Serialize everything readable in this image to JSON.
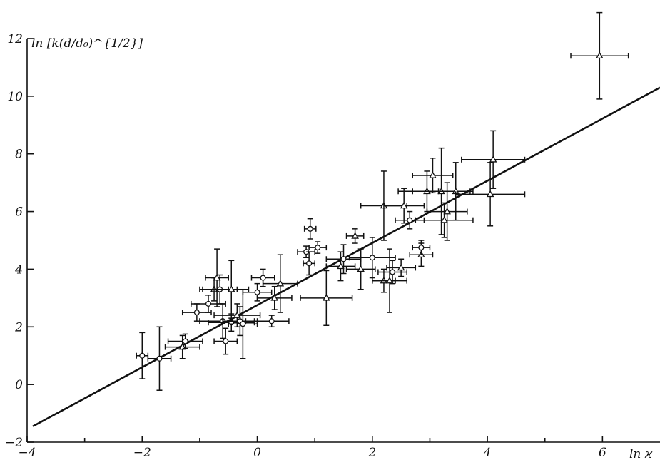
{
  "chart_data": {
    "type": "scatter",
    "xlabel": "ln ϰ",
    "ylabel": "ln [k(d/d₀)^{1/2}]",
    "xlim": [
      -4,
      7
    ],
    "ylim": [
      -2,
      12
    ],
    "x_ticks": [
      -4,
      -2,
      0,
      2,
      4,
      6
    ],
    "x_tick_labels": [
      "−4",
      "−2",
      "0",
      "2",
      "4",
      "6"
    ],
    "y_ticks": [
      -2,
      0,
      2,
      4,
      6,
      8,
      10,
      12
    ],
    "y_tick_labels": [
      "−2",
      "0",
      "2",
      "4",
      "6",
      "8",
      "10",
      "12"
    ],
    "grid": false,
    "fit_line": {
      "x": [
        -3.9,
        7.0
      ],
      "y": [
        -1.45,
        10.3
      ]
    },
    "points": [
      {
        "x": -2.0,
        "y": 1.0,
        "dx": 0.1,
        "dy": 0.8,
        "m": "o"
      },
      {
        "x": -1.7,
        "y": 0.9,
        "dx": 0.2,
        "dy": 1.1,
        "m": "o"
      },
      {
        "x": -1.3,
        "y": 1.3,
        "dx": 0.3,
        "dy": 0.4,
        "m": "t"
      },
      {
        "x": -1.25,
        "y": 1.5,
        "dx": 0.3,
        "dy": 0.25,
        "m": "o"
      },
      {
        "x": -1.05,
        "y": 2.5,
        "dx": 0.25,
        "dy": 0.3,
        "m": "o"
      },
      {
        "x": -0.85,
        "y": 2.8,
        "dx": 0.3,
        "dy": 0.3,
        "m": "o"
      },
      {
        "x": -0.75,
        "y": 3.3,
        "dx": 0.25,
        "dy": 0.4,
        "m": "t"
      },
      {
        "x": -0.7,
        "y": 3.7,
        "dx": 0.2,
        "dy": 1.0,
        "m": "t"
      },
      {
        "x": -0.65,
        "y": 3.3,
        "dx": 0.3,
        "dy": 0.5,
        "m": "o"
      },
      {
        "x": -0.6,
        "y": 2.2,
        "dx": 0.4,
        "dy": 0.6,
        "m": "o"
      },
      {
        "x": -0.55,
        "y": 1.5,
        "dx": 0.2,
        "dy": 0.45,
        "m": "o"
      },
      {
        "x": -0.45,
        "y": 2.15,
        "dx": 0.4,
        "dy": 0.3,
        "m": "o"
      },
      {
        "x": -0.45,
        "y": 3.3,
        "dx": 0.3,
        "dy": 1.0,
        "m": "t"
      },
      {
        "x": -0.35,
        "y": 2.4,
        "dx": 0.4,
        "dy": 0.4,
        "m": "t"
      },
      {
        "x": -0.3,
        "y": 2.2,
        "dx": 0.3,
        "dy": 0.5,
        "m": "o"
      },
      {
        "x": -0.25,
        "y": 2.1,
        "dx": 0.25,
        "dy": 1.2,
        "m": "o"
      },
      {
        "x": 0.0,
        "y": 3.2,
        "dx": 0.25,
        "dy": 0.3,
        "m": "o"
      },
      {
        "x": 0.1,
        "y": 3.7,
        "dx": 0.2,
        "dy": 0.3,
        "m": "o"
      },
      {
        "x": 0.25,
        "y": 2.2,
        "dx": 0.3,
        "dy": 0.2,
        "m": "o"
      },
      {
        "x": 0.3,
        "y": 3.0,
        "dx": 0.3,
        "dy": 0.4,
        "m": "t"
      },
      {
        "x": 0.4,
        "y": 3.5,
        "dx": 0.3,
        "dy": 1.0,
        "m": "t"
      },
      {
        "x": 0.85,
        "y": 4.6,
        "dx": 0.15,
        "dy": 0.2,
        "m": "o"
      },
      {
        "x": 0.9,
        "y": 4.2,
        "dx": 0.1,
        "dy": 0.4,
        "m": "o"
      },
      {
        "x": 0.92,
        "y": 5.4,
        "dx": 0.1,
        "dy": 0.35,
        "m": "o"
      },
      {
        "x": 1.05,
        "y": 4.75,
        "dx": 0.15,
        "dy": 0.2,
        "m": "o"
      },
      {
        "x": 1.2,
        "y": 3.0,
        "dx": 0.45,
        "dy": 0.95,
        "m": "t"
      },
      {
        "x": 1.45,
        "y": 4.1,
        "dx": 0.25,
        "dy": 0.5,
        "m": "t"
      },
      {
        "x": 1.5,
        "y": 4.35,
        "dx": 0.3,
        "dy": 0.5,
        "m": "o"
      },
      {
        "x": 1.7,
        "y": 5.15,
        "dx": 0.15,
        "dy": 0.25,
        "m": "t"
      },
      {
        "x": 1.8,
        "y": 4.0,
        "dx": 0.25,
        "dy": 0.7,
        "m": "t"
      },
      {
        "x": 2.0,
        "y": 4.4,
        "dx": 0.4,
        "dy": 0.7,
        "m": "o"
      },
      {
        "x": 2.2,
        "y": 3.6,
        "dx": 0.2,
        "dy": 0.4,
        "m": "t"
      },
      {
        "x": 2.2,
        "y": 6.2,
        "dx": 0.4,
        "dy": 1.2,
        "m": "t"
      },
      {
        "x": 2.3,
        "y": 3.6,
        "dx": 0.3,
        "dy": 1.1,
        "m": "t"
      },
      {
        "x": 2.35,
        "y": 3.9,
        "dx": 0.25,
        "dy": 0.4,
        "m": "o"
      },
      {
        "x": 2.5,
        "y": 4.05,
        "dx": 0.25,
        "dy": 0.3,
        "m": "t"
      },
      {
        "x": 2.55,
        "y": 6.2,
        "dx": 0.35,
        "dy": 0.6,
        "m": "t"
      },
      {
        "x": 2.65,
        "y": 5.7,
        "dx": 0.25,
        "dy": 0.3,
        "m": "o"
      },
      {
        "x": 2.85,
        "y": 4.5,
        "dx": 0.2,
        "dy": 0.4,
        "m": "t"
      },
      {
        "x": 2.85,
        "y": 4.75,
        "dx": 0.15,
        "dy": 0.25,
        "m": "o"
      },
      {
        "x": 2.95,
        "y": 6.7,
        "dx": 0.5,
        "dy": 0.7,
        "m": "t"
      },
      {
        "x": 3.05,
        "y": 7.25,
        "dx": 0.35,
        "dy": 0.6,
        "m": "t"
      },
      {
        "x": 3.2,
        "y": 6.7,
        "dx": 0.5,
        "dy": 1.5,
        "m": "t"
      },
      {
        "x": 3.25,
        "y": 5.7,
        "dx": 0.5,
        "dy": 0.6,
        "m": "t"
      },
      {
        "x": 3.3,
        "y": 6.0,
        "dx": 0.35,
        "dy": 1.0,
        "m": "t"
      },
      {
        "x": 3.45,
        "y": 6.7,
        "dx": 0.3,
        "dy": 1.0,
        "m": "t"
      },
      {
        "x": 4.05,
        "y": 6.6,
        "dx": 0.6,
        "dy": 1.1,
        "m": "t"
      },
      {
        "x": 4.1,
        "y": 7.8,
        "dx": 0.55,
        "dy": 1.0,
        "m": "t"
      },
      {
        "x": 5.95,
        "y": 11.4,
        "dx": 0.5,
        "dy": 1.5,
        "m": "t"
      }
    ]
  }
}
